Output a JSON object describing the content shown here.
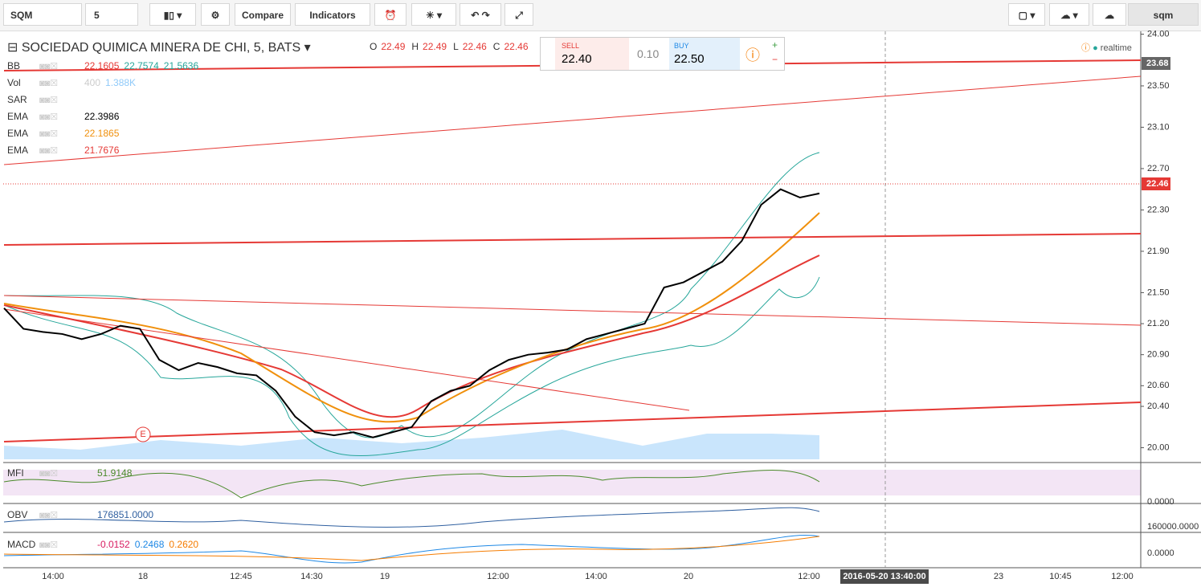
{
  "toolbar": {
    "symbol": "SQM",
    "interval": "5",
    "compare": "Compare",
    "indicators": "Indicators",
    "layout_name": "sqm"
  },
  "header": {
    "title": "SOCIEDAD QUIMICA MINERA DE CHI, 5, BATS",
    "ohlc": [
      {
        "label": "O",
        "value": "22.49"
      },
      {
        "label": "H",
        "value": "22.49"
      },
      {
        "label": "L",
        "value": "22.46"
      },
      {
        "label": "C",
        "value": "22.46"
      }
    ]
  },
  "trade": {
    "sell_label": "SELL",
    "sell": "22.40",
    "spread": "0.10",
    "buy_label": "BUY",
    "buy": "22.50"
  },
  "realtime": "realtime",
  "indicators": [
    {
      "name": "BB",
      "values": [
        "22.1605",
        "22.7574",
        "21.5636"
      ],
      "colors": [
        "#e53935",
        "#26a69a",
        "#26a69a"
      ]
    },
    {
      "name": "Vol",
      "values": [
        "400",
        "1.388K"
      ],
      "colors": [
        "#ccc",
        "#90caf9"
      ]
    },
    {
      "name": "SAR"
    },
    {
      "name": "EMA",
      "values": [
        "22.3986"
      ],
      "colors": [
        "#000"
      ]
    },
    {
      "name": "EMA",
      "values": [
        "22.1865"
      ],
      "colors": [
        "#f0900c"
      ]
    },
    {
      "name": "EMA",
      "values": [
        "21.7676"
      ],
      "colors": [
        "#e53935"
      ]
    }
  ],
  "price_labels": [
    "23.68",
    "22.46"
  ],
  "panes": [
    {
      "name": "MFI",
      "values": [
        "51.9148"
      ],
      "colors": [
        "#4a8a2a"
      ],
      "axis": "0.0000"
    },
    {
      "name": "OBV",
      "values": [
        "176851.0000"
      ],
      "colors": [
        "#3060a0"
      ],
      "axis": "160000.0000"
    },
    {
      "name": "MACD",
      "values": [
        "-0.0152",
        "0.2468",
        "0.2620"
      ],
      "colors": [
        "#d81b60",
        "#1e88e5",
        "#f57c00"
      ],
      "axis": "0.0000"
    }
  ],
  "time_axis": [
    "14:00",
    "18",
    "12:45",
    "14:30",
    "19",
    "12:00",
    "14:00",
    "20",
    "12:00",
    "23",
    "10:45",
    "12:00"
  ],
  "cursor_time": "2016-05-20 13:40:00",
  "chart_data": {
    "type": "line",
    "color": "#000",
    "values": [
      21.35,
      21.15,
      21.12,
      21.1,
      21.05,
      21.1,
      21.18,
      21.15,
      20.85,
      20.75,
      20.82,
      20.78,
      20.72,
      20.7,
      20.55,
      20.3,
      20.15,
      20.12,
      20.15,
      20.1,
      20.15,
      20.2,
      20.45,
      20.55,
      20.6,
      20.75,
      20.85,
      20.9,
      20.92,
      20.95,
      21.05,
      21.1,
      21.15,
      21.2,
      21.55,
      21.6,
      21.7,
      21.8,
      22.0,
      22.35,
      22.5,
      22.42,
      22.46
    ],
    "ylim": [
      19.88,
      24.02
    ],
    "yticks": [
      {
        "value": 20,
        "label": "20.00"
      },
      {
        "value": 20.4,
        "label": "20.40"
      },
      {
        "value": 20.6,
        "label": "20.60"
      },
      {
        "value": 20.9,
        "label": "20.90"
      },
      {
        "value": 21.2,
        "label": "21.20"
      },
      {
        "value": 21.5,
        "label": "21.50"
      },
      {
        "value": 21.9,
        "label": "21.90"
      },
      {
        "value": 22.3,
        "label": "22.30"
      },
      {
        "value": 22.7,
        "label": "22.70"
      },
      {
        "value": 23.1,
        "label": "23.10"
      },
      {
        "value": 23.5,
        "label": "23.50"
      },
      {
        "value": 24,
        "label": "24.00"
      }
    ]
  }
}
